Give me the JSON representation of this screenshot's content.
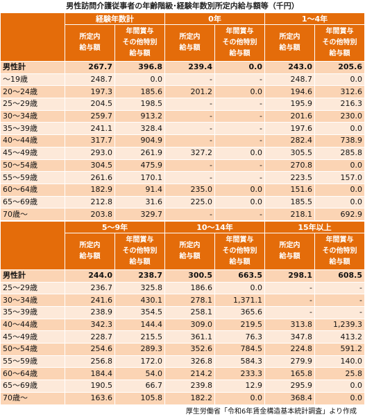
{
  "title": "男性訪問介護従事者の年齢階級･経験年数別所定内給与額等（千円）",
  "tables": [
    {
      "groups": [
        {
          "name": "経験年数計",
          "columns": [
            "所定内\n給与額",
            "年間賞与\nその他特別\n給与額"
          ]
        },
        {
          "name": "0年",
          "columns": [
            "所定内\n給与額",
            "年間賞与\nその他特別\n給与額"
          ]
        },
        {
          "name": "1～4年",
          "columns": [
            "所定内\n給与額",
            "年間賞与\nその他特別\n給与額"
          ]
        }
      ],
      "rows": [
        {
          "label": "男性計",
          "cells": [
            "267.7",
            "396.8",
            "239.4",
            "0.0",
            "243.0",
            "205.6"
          ]
        },
        {
          "label": "～19歳",
          "cells": [
            "248.7",
            "0.0",
            "-",
            "-",
            "248.7",
            "0.0"
          ]
        },
        {
          "label": "20～24歳",
          "cells": [
            "197.3",
            "185.6",
            "201.2",
            "0.0",
            "194.6",
            "312.6"
          ]
        },
        {
          "label": "25～29歳",
          "cells": [
            "204.5",
            "198.5",
            "-",
            "-",
            "195.9",
            "216.3"
          ]
        },
        {
          "label": "30～34歳",
          "cells": [
            "259.7",
            "913.2",
            "-",
            "-",
            "201.6",
            "230.0"
          ]
        },
        {
          "label": "35～39歳",
          "cells": [
            "241.1",
            "328.4",
            "-",
            "-",
            "197.6",
            "0.0"
          ]
        },
        {
          "label": "40～44歳",
          "cells": [
            "317.7",
            "904.9",
            "-",
            "-",
            "282.4",
            "738.9"
          ]
        },
        {
          "label": "45～49歳",
          "cells": [
            "293.0",
            "261.9",
            "327.2",
            "0.0",
            "305.5",
            "285.8"
          ]
        },
        {
          "label": "50～54歳",
          "cells": [
            "304.5",
            "475.9",
            "-",
            "-",
            "270.8",
            "0.0"
          ]
        },
        {
          "label": "55～59歳",
          "cells": [
            "261.6",
            "170.1",
            "-",
            "-",
            "223.5",
            "157.0"
          ]
        },
        {
          "label": "60～64歳",
          "cells": [
            "182.9",
            "91.4",
            "235.0",
            "0.0",
            "151.6",
            "0.0"
          ]
        },
        {
          "label": "65～69歳",
          "cells": [
            "212.8",
            "31.6",
            "225.0",
            "0.0",
            "185.5",
            "0.0"
          ]
        },
        {
          "label": "70歳～",
          "cells": [
            "203.8",
            "329.7",
            "-",
            "-",
            "218.1",
            "692.9"
          ]
        }
      ]
    },
    {
      "groups": [
        {
          "name": "5～9年",
          "columns": [
            "所定内\n給与額",
            "年間賞与\nその他特別\n給与額"
          ]
        },
        {
          "name": "10～14年",
          "columns": [
            "所定内\n給与額",
            "年間賞与\nその他特別\n給与額"
          ]
        },
        {
          "name": "15年以上",
          "columns": [
            "所定内\n給与額",
            "年間賞与\nその他特別\n給与額"
          ]
        }
      ],
      "rows": [
        {
          "label": "男性計",
          "cells": [
            "244.0",
            "238.7",
            "300.5",
            "663.5",
            "298.1",
            "608.5"
          ]
        },
        {
          "label": "25～29歳",
          "cells": [
            "236.7",
            "325.8",
            "186.6",
            "0.0",
            "-",
            "-"
          ]
        },
        {
          "label": "30～34歳",
          "cells": [
            "241.6",
            "430.1",
            "278.1",
            "1,371.1",
            "-",
            "-"
          ]
        },
        {
          "label": "35～39歳",
          "cells": [
            "238.9",
            "354.5",
            "258.1",
            "365.6",
            "-",
            "-"
          ]
        },
        {
          "label": "40～44歳",
          "cells": [
            "342.3",
            "144.4",
            "309.0",
            "219.5",
            "313.8",
            "1,239.3"
          ]
        },
        {
          "label": "45～49歳",
          "cells": [
            "228.7",
            "215.5",
            "361.1",
            "76.3",
            "347.8",
            "413.2"
          ]
        },
        {
          "label": "50～54歳",
          "cells": [
            "254.6",
            "289.3",
            "352.6",
            "784.5",
            "224.8",
            "591.2"
          ]
        },
        {
          "label": "55～59歳",
          "cells": [
            "256.8",
            "172.0",
            "326.8",
            "584.3",
            "279.9",
            "140.0"
          ]
        },
        {
          "label": "60～64歳",
          "cells": [
            "184.4",
            "54.0",
            "214.2",
            "233.3",
            "165.8",
            "25.8"
          ]
        },
        {
          "label": "65～69歳",
          "cells": [
            "190.5",
            "66.7",
            "239.8",
            "12.9",
            "295.9",
            "0.0"
          ]
        },
        {
          "label": "70歳～",
          "cells": [
            "163.6",
            "105.8",
            "182.2",
            "0.0",
            "368.4",
            "0.0"
          ]
        }
      ]
    }
  ],
  "source": "厚生労働省「令和6年賃金構造基本統計調査」より作成"
}
